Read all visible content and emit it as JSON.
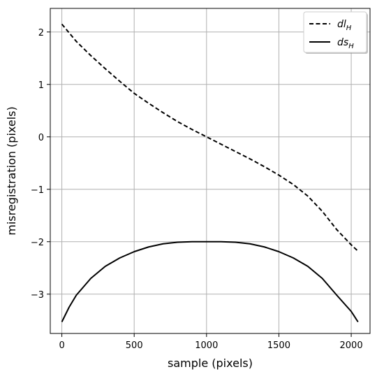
{
  "chart_data": {
    "type": "line",
    "title": "",
    "xlabel": "sample (pixels)",
    "ylabel": "misregistration (pixels)",
    "xlim": [
      -80,
      2130
    ],
    "ylim": [
      -3.75,
      2.45
    ],
    "xticks": [
      0,
      500,
      1000,
      1500,
      2000
    ],
    "yticks": [
      -3,
      -2,
      -1,
      0,
      1,
      2
    ],
    "xtick_labels": [
      "0",
      "500",
      "1000",
      "1500",
      "2000"
    ],
    "ytick_labels": [
      "−3",
      "−2",
      "−1",
      "0",
      "1",
      "2"
    ],
    "grid": true,
    "legend_position": "top-right",
    "series": [
      {
        "name": "dl_H",
        "legend_main": "dl",
        "legend_sub": "H",
        "line_style": "dashed",
        "color": "#000000",
        "x": [
          0,
          100,
          200,
          300,
          400,
          500,
          600,
          700,
          800,
          900,
          1000,
          1100,
          1200,
          1300,
          1400,
          1500,
          1600,
          1700,
          1800,
          1900,
          2000,
          2047
        ],
        "y": [
          2.15,
          1.82,
          1.55,
          1.3,
          1.06,
          0.83,
          0.64,
          0.46,
          0.29,
          0.14,
          0.0,
          -0.14,
          -0.28,
          -0.42,
          -0.57,
          -0.73,
          -0.91,
          -1.13,
          -1.42,
          -1.77,
          -2.06,
          -2.18
        ]
      },
      {
        "name": "ds_H",
        "legend_main": "ds",
        "legend_sub": "H",
        "line_style": "solid",
        "color": "#000000",
        "x": [
          0,
          50,
          100,
          200,
          300,
          400,
          500,
          600,
          700,
          800,
          900,
          1000,
          1024,
          1100,
          1200,
          1300,
          1400,
          1500,
          1600,
          1700,
          1800,
          1900,
          2000,
          2047
        ],
        "y": [
          -3.53,
          -3.25,
          -3.02,
          -2.7,
          -2.47,
          -2.31,
          -2.19,
          -2.1,
          -2.04,
          -2.01,
          -2.0,
          -2.0,
          -2.0,
          -2.0,
          -2.01,
          -2.04,
          -2.1,
          -2.19,
          -2.31,
          -2.47,
          -2.7,
          -3.02,
          -3.33,
          -3.53
        ]
      }
    ]
  }
}
